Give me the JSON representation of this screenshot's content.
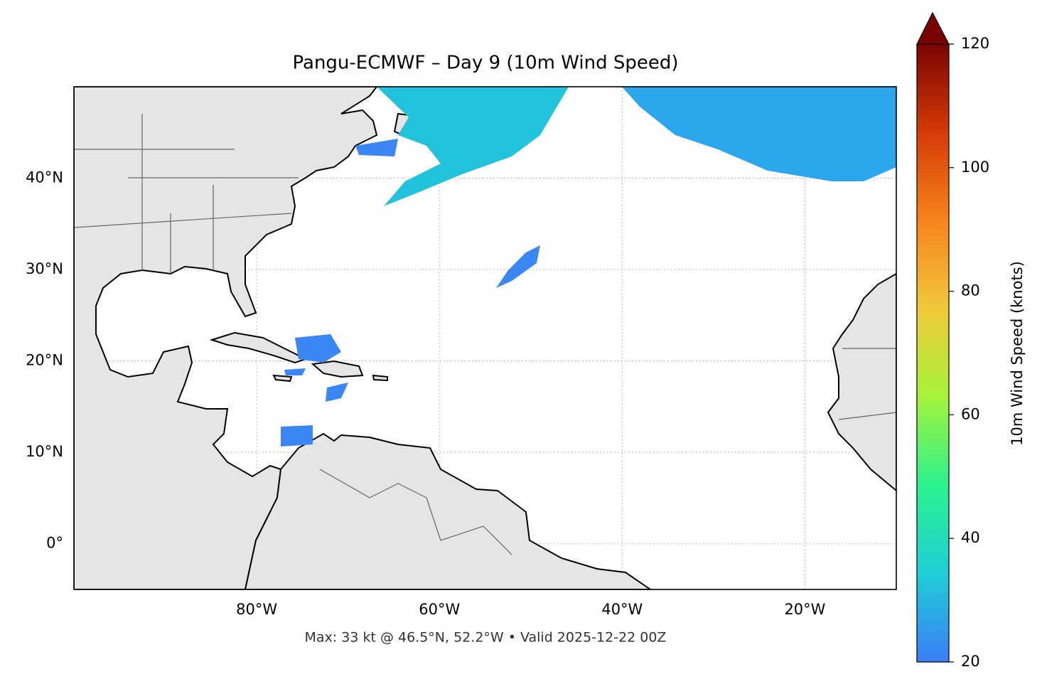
{
  "title": "Pangu-ECMWF – Day 9 (10m Wind Speed)",
  "map": {
    "xlim": [
      -100,
      -10
    ],
    "ylim": [
      -5,
      50
    ],
    "xticks": [
      {
        "value": -80,
        "label": "80°W"
      },
      {
        "value": -60,
        "label": "60°W"
      },
      {
        "value": -40,
        "label": "40°W"
      },
      {
        "value": -20,
        "label": "20°W"
      }
    ],
    "yticks": [
      {
        "value": 0,
        "label": "0°"
      },
      {
        "value": 10,
        "label": "10°N"
      },
      {
        "value": 20,
        "label": "20°N"
      },
      {
        "value": 30,
        "label": "30°N"
      },
      {
        "value": 40,
        "label": "40°N"
      }
    ]
  },
  "colorbar": {
    "label": "10m Wind Speed (knots)",
    "lim": [
      20,
      120
    ],
    "ticks": [
      20,
      40,
      60,
      80,
      100,
      120
    ],
    "colors": [
      "#3b7df7",
      "#1fcfd6",
      "#2bf28f",
      "#a5f33a",
      "#f0c93a",
      "#f7841c",
      "#d63b07",
      "#7a0403"
    ]
  },
  "footer": "Max: 33 kt @ 46.5°N, 52.2°W • Valid 2025-12-22 00Z"
}
